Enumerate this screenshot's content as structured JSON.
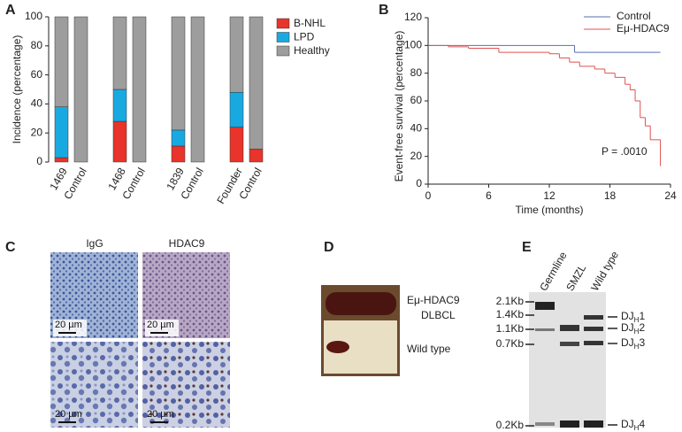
{
  "figure": {
    "panels": [
      "A",
      "B",
      "C",
      "D",
      "E"
    ],
    "panel_c": {
      "columns": [
        "IgG",
        "HDAC9"
      ],
      "scale_bars": [
        "20 µm",
        "20 µm",
        "20 µm",
        "20 µm"
      ]
    },
    "panel_d": {
      "labels": [
        "Eμ-HDAC9",
        "DLBCL",
        "Wild type"
      ]
    },
    "panel_e": {
      "lanes": [
        "Germline",
        "SMZL",
        "Wild type"
      ],
      "size_markers": [
        "2.1Kb",
        "1.4Kb",
        "1.1Kb",
        "0.7Kb",
        "0.2Kb"
      ],
      "bands": [
        {
          "main": "DJ",
          "sub": "H",
          "num": "1"
        },
        {
          "main": "DJ",
          "sub": "H",
          "num": "2"
        },
        {
          "main": "DJ",
          "sub": "H",
          "num": "3"
        },
        {
          "main": "DJ",
          "sub": "H",
          "num": "4"
        }
      ]
    }
  },
  "chart_data": [
    {
      "type": "bar",
      "stacked": true,
      "categories": [
        "1469",
        "Control",
        "1468",
        "Control",
        "1839",
        "Control",
        "Founder",
        "Control"
      ],
      "series": [
        {
          "name": "B-NHL",
          "color": "#e8342a",
          "values": [
            3,
            0,
            28,
            0,
            11,
            0,
            24,
            9
          ]
        },
        {
          "name": "LPD",
          "color": "#19a9e1",
          "values": [
            35,
            0,
            22,
            0,
            11,
            0,
            24,
            0
          ]
        },
        {
          "name": "Healthy",
          "color": "#9d9d9d",
          "values": [
            62,
            100,
            50,
            100,
            78,
            100,
            52,
            91
          ]
        }
      ],
      "ylim": [
        0,
        100
      ],
      "yticks": [
        0,
        20,
        40,
        60,
        80,
        100
      ],
      "ylabel": "Incidence (percentage)",
      "legend": "upper right"
    },
    {
      "type": "line",
      "step": true,
      "series": [
        {
          "name": "Control",
          "color": "#5a6fb0",
          "x": [
            0,
            14.5,
            23
          ],
          "values": [
            100,
            95,
            95
          ]
        },
        {
          "name": "Eμ-HDAC9",
          "color": "#e05050",
          "x": [
            0,
            2,
            4,
            7,
            12,
            13,
            14,
            15,
            16.5,
            17.5,
            18.5,
            19.5,
            20,
            20.5,
            21,
            21.5,
            22,
            23
          ],
          "values": [
            100,
            99,
            98,
            95,
            94,
            91,
            88,
            85,
            83,
            80,
            77,
            72,
            68,
            60,
            48,
            42,
            32,
            13
          ]
        }
      ],
      "xlim": [
        0,
        24
      ],
      "xticks": [
        0,
        6,
        12,
        18,
        24
      ],
      "ylim": [
        0,
        120
      ],
      "yticks": [
        0,
        20,
        40,
        60,
        80,
        100,
        120
      ],
      "xlabel": "Time (months)",
      "ylabel": "Event-free survival (percentage)",
      "annotation": "P = .0010",
      "legend": "upper right"
    }
  ]
}
